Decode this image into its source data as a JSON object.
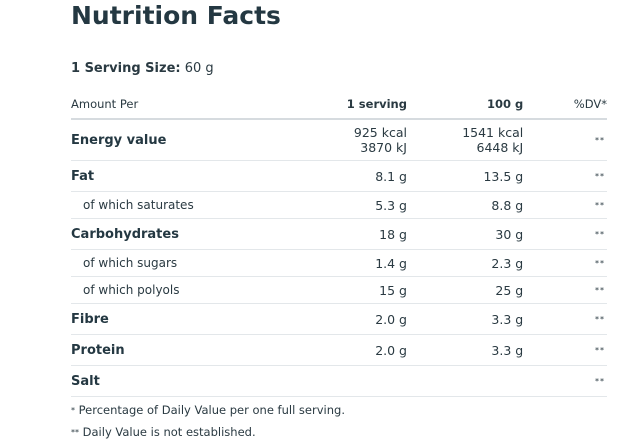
{
  "title": "Nutrition Facts",
  "serving": {
    "label": "1 Serving Size:",
    "value": "60 g"
  },
  "table": {
    "headers": [
      "Amount Per",
      "1 serving",
      "100 g",
      "%DV*"
    ],
    "rows": [
      {
        "name": "Energy value",
        "serving": "925 kcal",
        "serving2": "3870 kJ",
        "per100": "1541 kcal",
        "per100_2": "6448 kJ",
        "dv": "**"
      },
      {
        "name": "Fat",
        "serving": "8.1 g",
        "per100": "13.5 g",
        "dv": "**"
      },
      {
        "name": "of which saturates",
        "serving": "5.3 g",
        "per100": "8.8 g",
        "dv": "**"
      },
      {
        "name": "Carbohydrates",
        "serving": "18 g",
        "per100": "30 g",
        "dv": "**"
      },
      {
        "name": "of which sugars",
        "serving": "1.4 g",
        "per100": "2.3 g",
        "dv": "**"
      },
      {
        "name": "of which polyols",
        "serving": "15 g",
        "per100": "25 g",
        "dv": "**"
      },
      {
        "name": "Fibre",
        "serving": "2.0 g",
        "per100": "3.3 g",
        "dv": "**"
      },
      {
        "name": "Protein",
        "serving": "2.0 g",
        "per100": "3.3 g",
        "dv": "**"
      },
      {
        "name": "Salt",
        "serving": "",
        "per100": "",
        "dv": "**"
      }
    ]
  },
  "footnotes": [
    {
      "mark": "*",
      "text": "Percentage of Daily Value per one full serving."
    },
    {
      "mark": "**",
      "text": "Daily Value is not established."
    }
  ]
}
